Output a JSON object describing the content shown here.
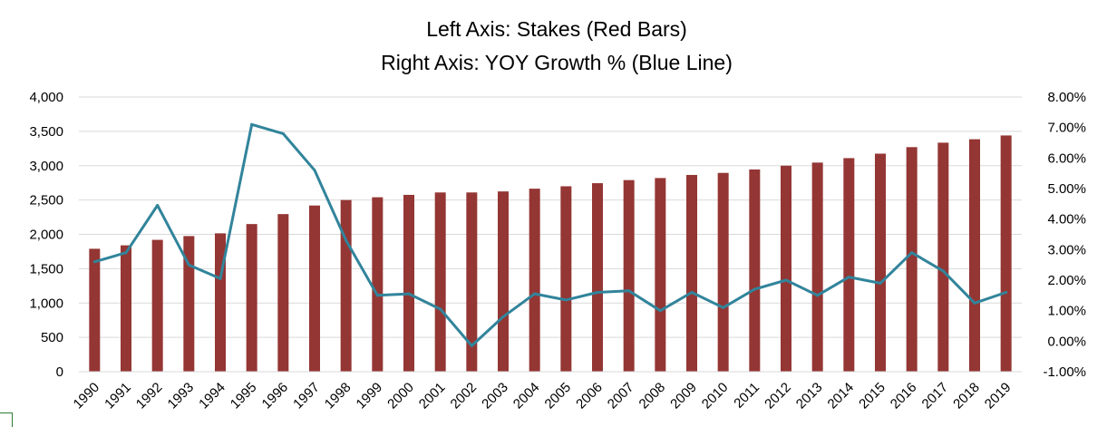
{
  "chart_data": {
    "type": "bar",
    "title_lines": [
      "Left Axis: Stakes (Red Bars)",
      "Right Axis: YOY Growth % (Blue Line)"
    ],
    "categories": [
      "1990",
      "1991",
      "1992",
      "1993",
      "1994",
      "1995",
      "1996",
      "1997",
      "1998",
      "1999",
      "2000",
      "2001",
      "2002",
      "2003",
      "2004",
      "2005",
      "2006",
      "2007",
      "2008",
      "2009",
      "2010",
      "2011",
      "2012",
      "2013",
      "2014",
      "2015",
      "2016",
      "2017",
      "2018",
      "2019"
    ],
    "series": [
      {
        "type": "bar",
        "axis": "left",
        "color": "#943634",
        "values": [
          1790,
          1840,
          1920,
          1975,
          2015,
          2150,
          2295,
          2420,
          2500,
          2540,
          2575,
          2610,
          2610,
          2625,
          2665,
          2700,
          2745,
          2790,
          2820,
          2865,
          2895,
          2945,
          3000,
          3045,
          3110,
          3175,
          3270,
          3335,
          3385,
          3440
        ]
      },
      {
        "type": "line",
        "axis": "right",
        "color": "#31849b",
        "values": [
          2.6,
          2.9,
          4.45,
          2.5,
          2.05,
          7.1,
          6.8,
          5.6,
          3.3,
          1.5,
          1.55,
          1.05,
          -0.15,
          0.8,
          1.55,
          1.35,
          1.6,
          1.65,
          1.0,
          1.6,
          1.1,
          1.7,
          2.0,
          1.5,
          2.1,
          1.9,
          2.9,
          2.3,
          1.25,
          1.6
        ]
      }
    ],
    "y_left": {
      "min": 0,
      "max": 4000,
      "step": 500,
      "ticks": [
        "0",
        "500",
        "1,000",
        "1,500",
        "2,000",
        "2,500",
        "3,000",
        "3,500",
        "4,000"
      ]
    },
    "y_right": {
      "min": -1,
      "max": 8,
      "step": 1,
      "ticks": [
        "-1.00%",
        "0.00%",
        "1.00%",
        "2.00%",
        "3.00%",
        "4.00%",
        "5.00%",
        "6.00%",
        "7.00%",
        "8.00%"
      ]
    },
    "grid": true,
    "legend": "none"
  }
}
